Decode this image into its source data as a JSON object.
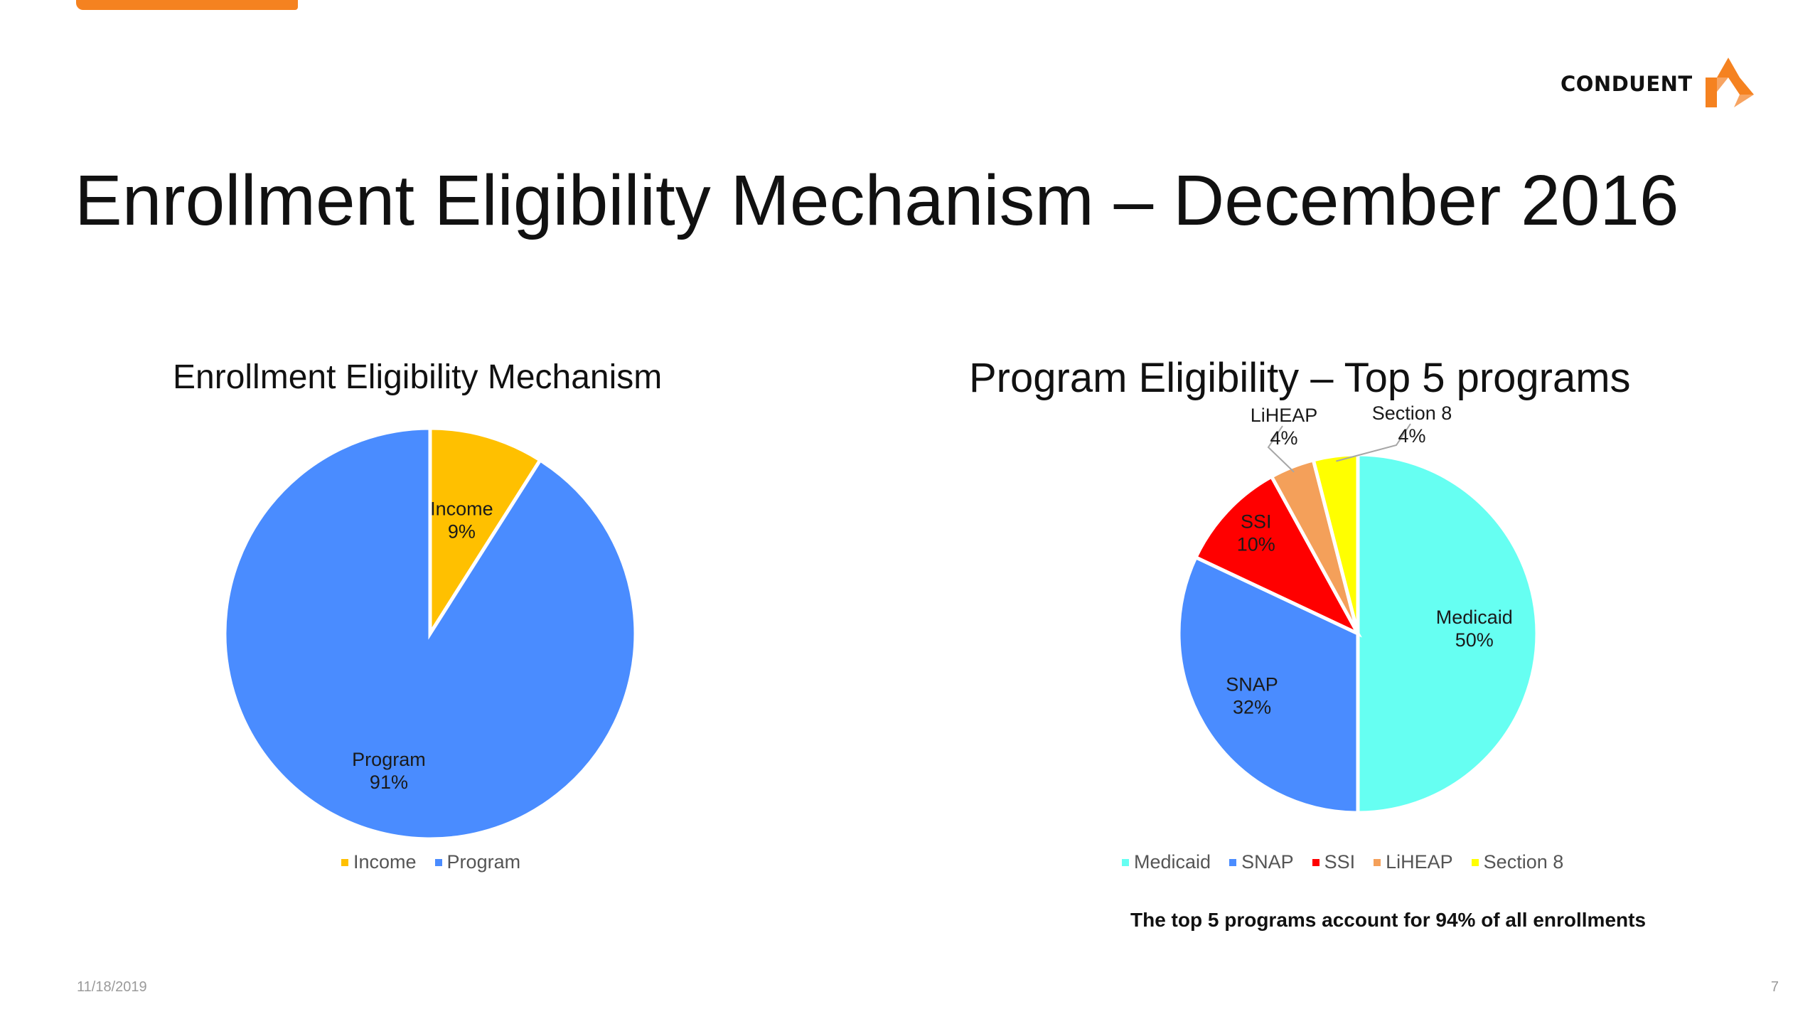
{
  "slide": {
    "title": "Enrollment Eligibility Mechanism – December 2016",
    "brand": "CONDUENT",
    "brand_color": "#f58220",
    "footnote": "The top 5 programs account for 94% of all enrollments",
    "footer_date": "11/18/2019",
    "page_number": "7"
  },
  "chart_data": [
    {
      "type": "pie",
      "title": "Enrollment Eligibility Mechanism",
      "legend": "bottom",
      "slices": [
        {
          "label": "Income",
          "value": 9,
          "display": "9%",
          "color": "#ffc000"
        },
        {
          "label": "Program",
          "value": 91,
          "display": "91%",
          "color": "#4a8cff"
        }
      ]
    },
    {
      "type": "pie",
      "title": "Program Eligibility – Top 5 programs",
      "legend": "bottom",
      "slices": [
        {
          "label": "Medicaid",
          "value": 50,
          "display": "50%",
          "color": "#66fff2"
        },
        {
          "label": "SNAP",
          "value": 32,
          "display": "32%",
          "color": "#4a8cff"
        },
        {
          "label": "SSI",
          "value": 10,
          "display": "10%",
          "color": "#ff0000"
        },
        {
          "label": "LiHEAP",
          "value": 4,
          "display": "4%",
          "color": "#f4a05a"
        },
        {
          "label": "Section 8",
          "value": 4,
          "display": "4%",
          "color": "#ffff00"
        }
      ]
    }
  ]
}
